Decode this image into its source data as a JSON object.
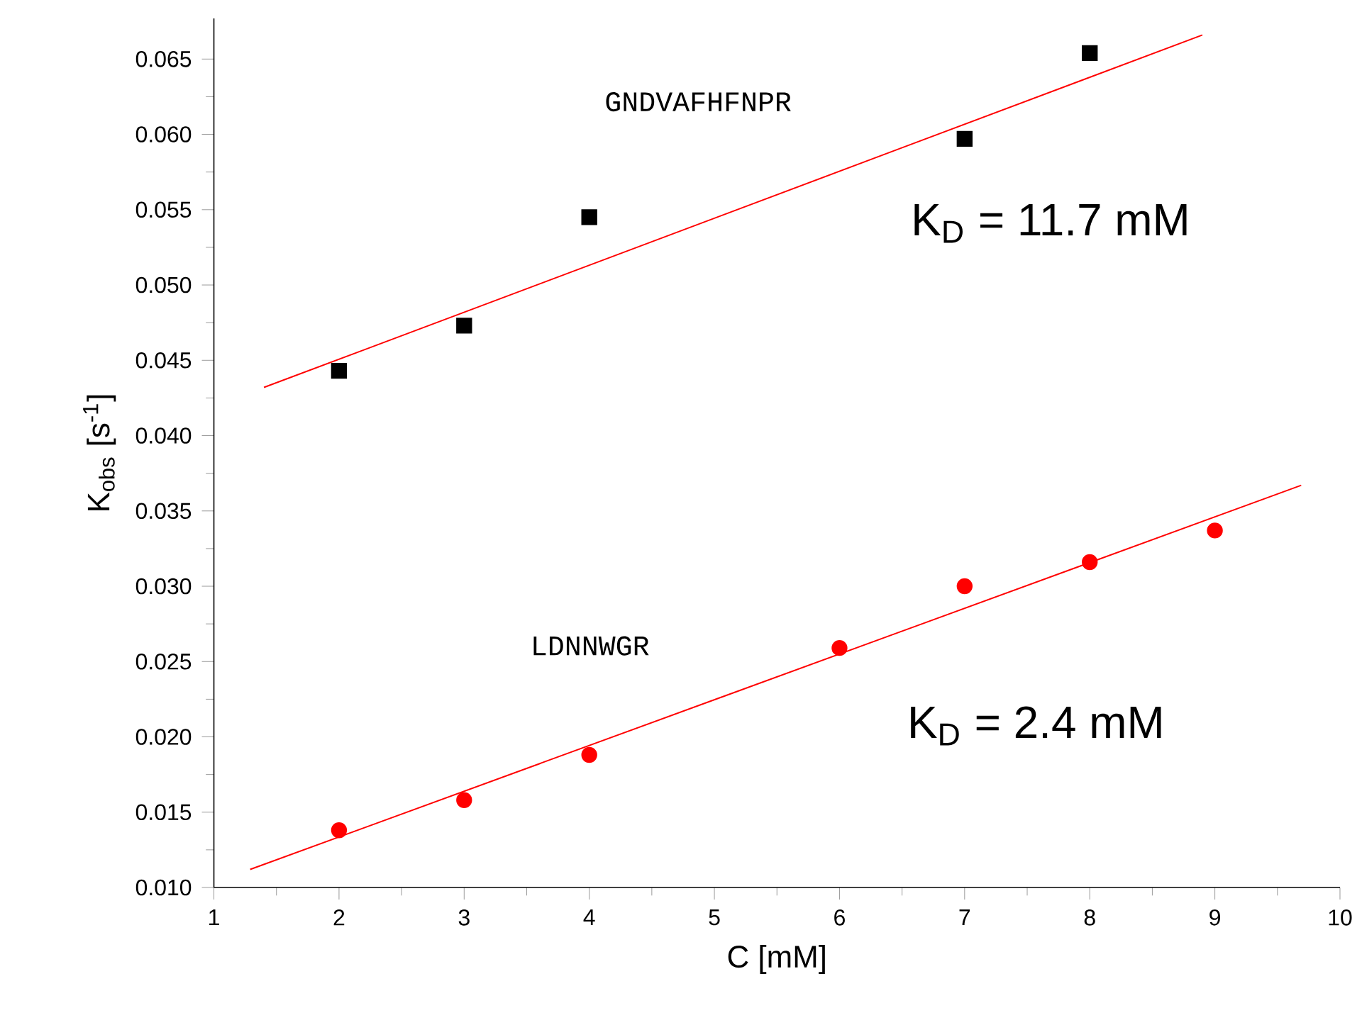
{
  "chart_data": {
    "type": "scatter",
    "xlabel": "C [mM]",
    "ylabel": "K$_{obs}$ [s$^{-1}$]",
    "xlim": [
      1,
      10
    ],
    "ylim": [
      0.01,
      0.0677
    ],
    "xticks": [
      1,
      2,
      3,
      4,
      5,
      6,
      7,
      8,
      9,
      10
    ],
    "yticks": [
      {
        "value": 0.01,
        "label": "0.010"
      },
      {
        "value": 0.015,
        "label": "0.015"
      },
      {
        "value": 0.02,
        "label": "0.020"
      },
      {
        "value": 0.025,
        "label": "0.025"
      },
      {
        "value": 0.03,
        "label": "0.030"
      },
      {
        "value": 0.035,
        "label": "0.035"
      },
      {
        "value": 0.04,
        "label": "0.040"
      },
      {
        "value": 0.045,
        "label": "0.045"
      },
      {
        "value": 0.05,
        "label": "0.050"
      },
      {
        "value": 0.055,
        "label": "0.055"
      },
      {
        "value": 0.06,
        "label": "0.060"
      },
      {
        "value": 0.065,
        "label": "0.065"
      }
    ],
    "grid": false,
    "series": [
      {
        "marker": "square",
        "color": "#000000",
        "x": [
          2,
          3,
          4,
          7,
          8
        ],
        "values": [
          0.0443,
          0.0473,
          0.0545,
          0.0597,
          0.0654
        ]
      },
      {
        "marker": "circle",
        "color": "#ff0000",
        "x": [
          2,
          3,
          4,
          6,
          7,
          8,
          9
        ],
        "values": [
          0.0138,
          0.0158,
          0.0188,
          0.0259,
          0.03,
          0.0316,
          0.0337
        ]
      },
      {
        "type": "line",
        "marker": "none",
        "color": "#ff0000",
        "x": [
          1.4,
          8.9
        ],
        "values": [
          0.0432,
          0.0666
        ]
      },
      {
        "type": "line",
        "marker": "none",
        "color": "#ff0000",
        "x": [
          1.29,
          9.69
        ],
        "values": [
          0.0112,
          0.0367
        ]
      }
    ],
    "annotations": [
      "GNDVAFHFNPR",
      "LDNNWGR",
      "K$_{D}$ = 11.7 mM",
      "K$_{D}$ = 2.4 mM"
    ]
  }
}
